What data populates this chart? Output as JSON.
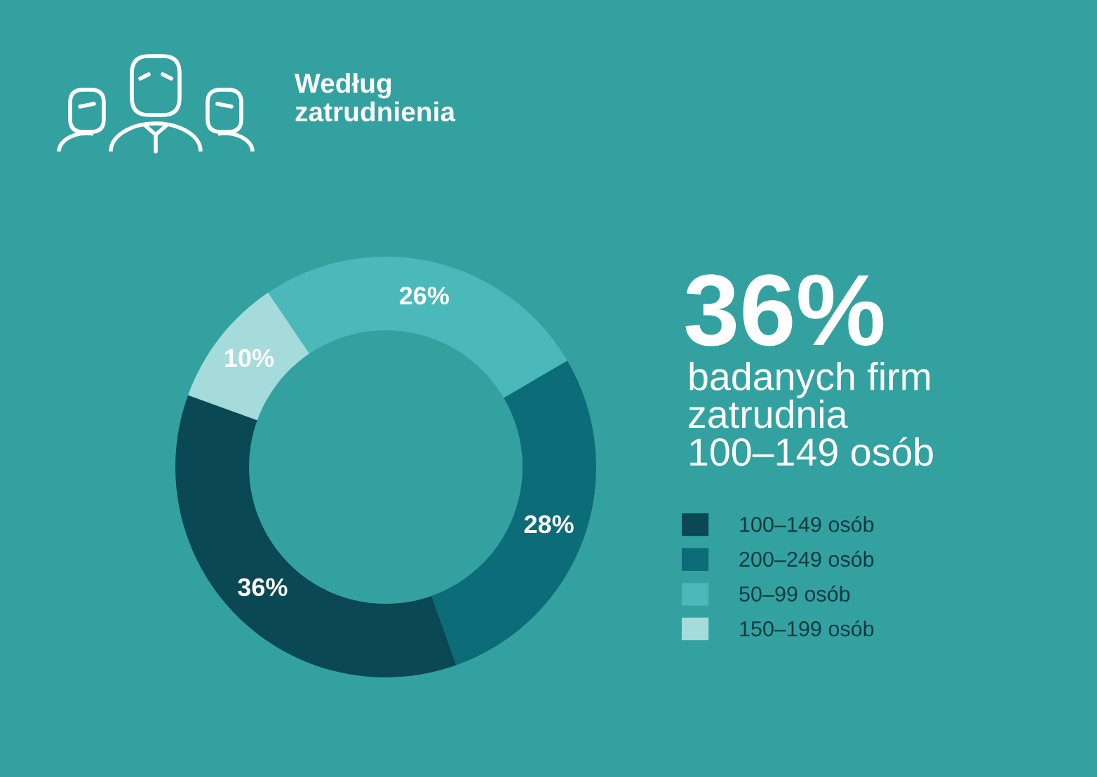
{
  "chart_data": {
    "type": "donut",
    "title": "Według\nzatrudnienia",
    "categories": [
      "100–149 osób",
      "200–249 osób",
      "50–99 osób",
      "150–199 osób"
    ],
    "values": [
      36,
      28,
      26,
      10
    ],
    "colors": [
      "#0a4853",
      "#0c6c77",
      "#4bb9b9",
      "#a6dbdb"
    ],
    "value_labels": [
      "36%",
      "28%",
      "26%",
      "10%"
    ],
    "legend": "right",
    "annotations": [
      "36%",
      "badanych firm\nzatrudnia\n100–149 osób"
    ]
  }
}
